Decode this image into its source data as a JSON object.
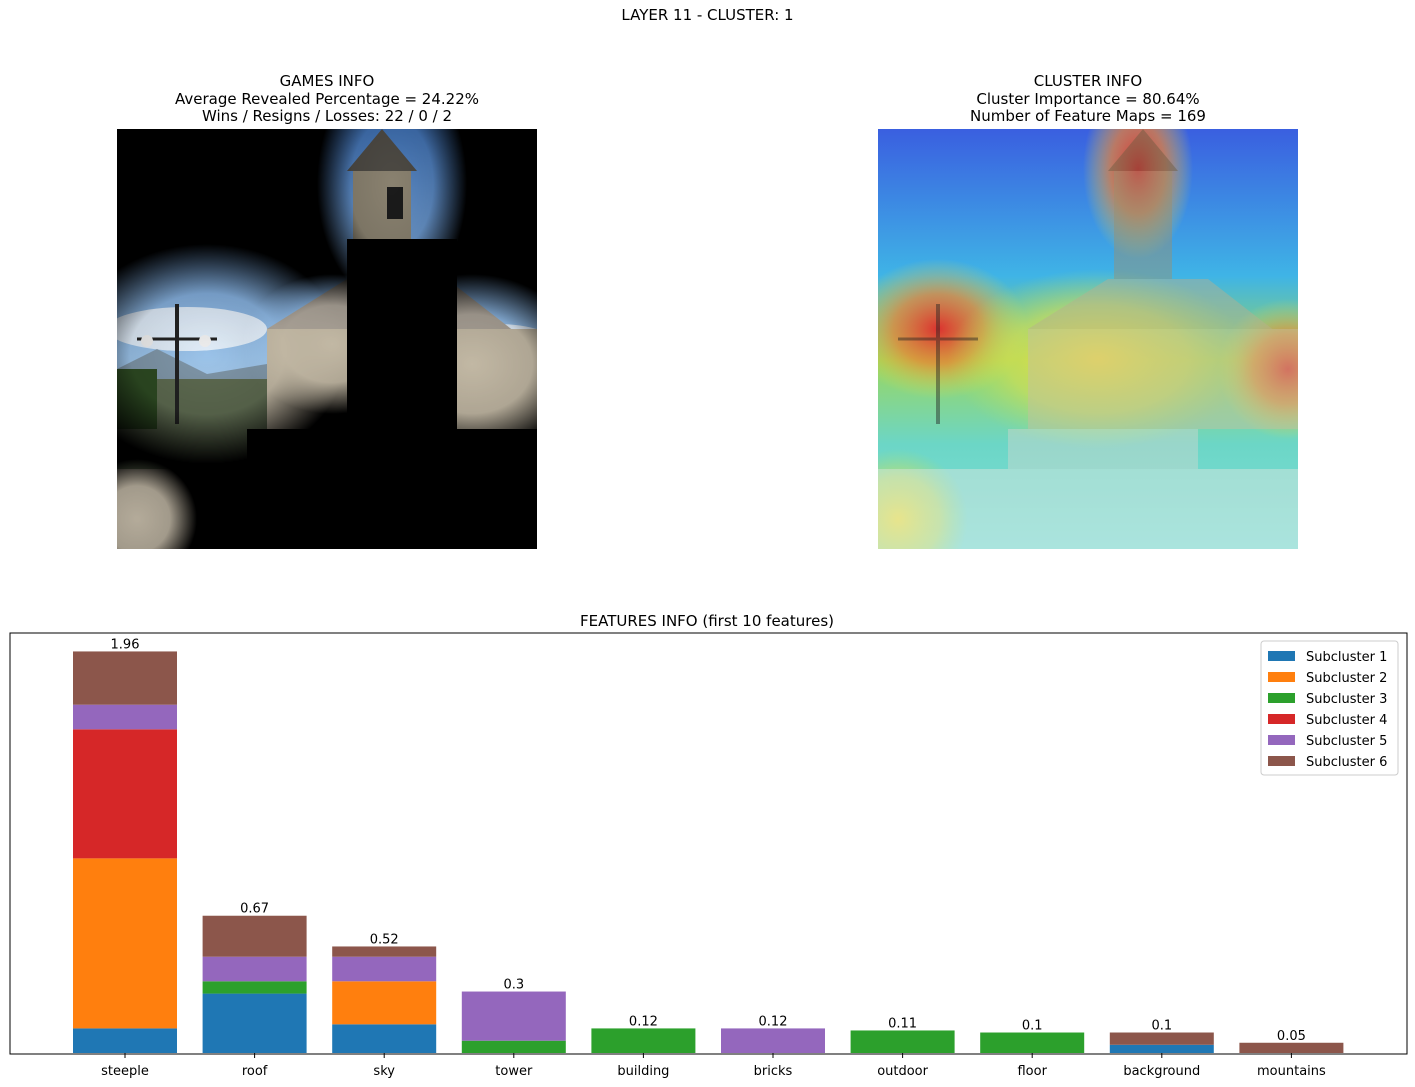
{
  "figure": {
    "title": "LAYER 11 - CLUSTER: 1"
  },
  "games_info": {
    "title": "GAMES INFO",
    "line1": "Average Revealed Percentage = 24.22%",
    "line2": "Wins / Resigns / Losses: 22 / 0 / 2"
  },
  "cluster_info": {
    "title": "CLUSTER INFO",
    "line1": "Cluster Importance = 80.64%",
    "line2": "Number of Feature Maps = 169"
  },
  "chart_data": {
    "type": "bar",
    "stacked": true,
    "title": "FEATURES INFO (first 10 features)",
    "xlabel": "",
    "ylabel": "",
    "ylim": [
      0,
      2.05
    ],
    "grid": false,
    "legend_position": "top-right",
    "categories": [
      "steeple",
      "roof",
      "sky",
      "tower",
      "building",
      "bricks",
      "outdoor",
      "floor",
      "background",
      "mountains"
    ],
    "totals": [
      "1.96",
      "0.67",
      "0.52",
      "0.3",
      "0.12",
      "0.12",
      "0.11",
      "0.1",
      "0.1",
      "0.05"
    ],
    "series": [
      {
        "name": "Subcluster 1",
        "color": "#1f77b4",
        "values": [
          0.12,
          0.29,
          0.14,
          0,
          0,
          0,
          0,
          0,
          0.04,
          0
        ]
      },
      {
        "name": "Subcluster 2",
        "color": "#ff7f0e",
        "values": [
          0.83,
          0,
          0.21,
          0,
          0,
          0,
          0,
          0,
          0,
          0
        ]
      },
      {
        "name": "Subcluster 3",
        "color": "#2ca02c",
        "values": [
          0,
          0.06,
          0,
          0.06,
          0.12,
          0,
          0.11,
          0.1,
          0,
          0
        ]
      },
      {
        "name": "Subcluster 4",
        "color": "#d62728",
        "values": [
          0.63,
          0,
          0,
          0,
          0,
          0,
          0,
          0,
          0,
          0
        ]
      },
      {
        "name": "Subcluster 5",
        "color": "#9467bd",
        "values": [
          0.12,
          0.12,
          0.12,
          0.24,
          0,
          0.12,
          0,
          0,
          0,
          0
        ]
      },
      {
        "name": "Subcluster 6",
        "color": "#8c564b",
        "values": [
          0.26,
          0.2,
          0.05,
          0,
          0,
          0,
          0,
          0,
          0.06,
          0.05
        ]
      }
    ]
  }
}
